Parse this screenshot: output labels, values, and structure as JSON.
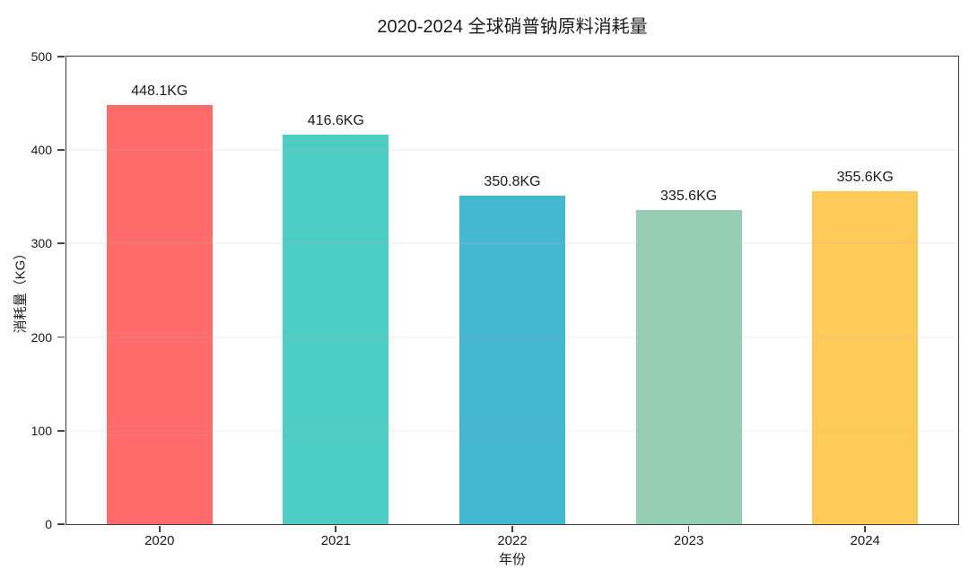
{
  "chart_data": {
    "type": "bar",
    "title": "2020-2024 全球硝普钠原料消耗量",
    "xlabel": "年份",
    "ylabel": "消耗量（KG）",
    "categories": [
      "2020",
      "2021",
      "2022",
      "2023",
      "2024"
    ],
    "values": [
      448.1,
      416.6,
      350.8,
      335.6,
      355.6
    ],
    "bar_labels": [
      "448.1KG",
      "416.6KG",
      "350.8KG",
      "335.6KG",
      "355.6KG"
    ],
    "bar_colors": [
      "#FF6B6B",
      "#4ECDC4",
      "#45B7D1",
      "#96CEB4",
      "#FECA57"
    ],
    "ylim": [
      0,
      500
    ],
    "yticks": [
      0,
      100,
      200,
      300,
      400,
      500
    ],
    "grid": "horizontal-major-over-bars",
    "gridline_color": "#e9e9e9",
    "legend": "none",
    "background": "#ffffff",
    "text_color": "#1a1a1a",
    "spine_color": "#3c3c3c"
  }
}
